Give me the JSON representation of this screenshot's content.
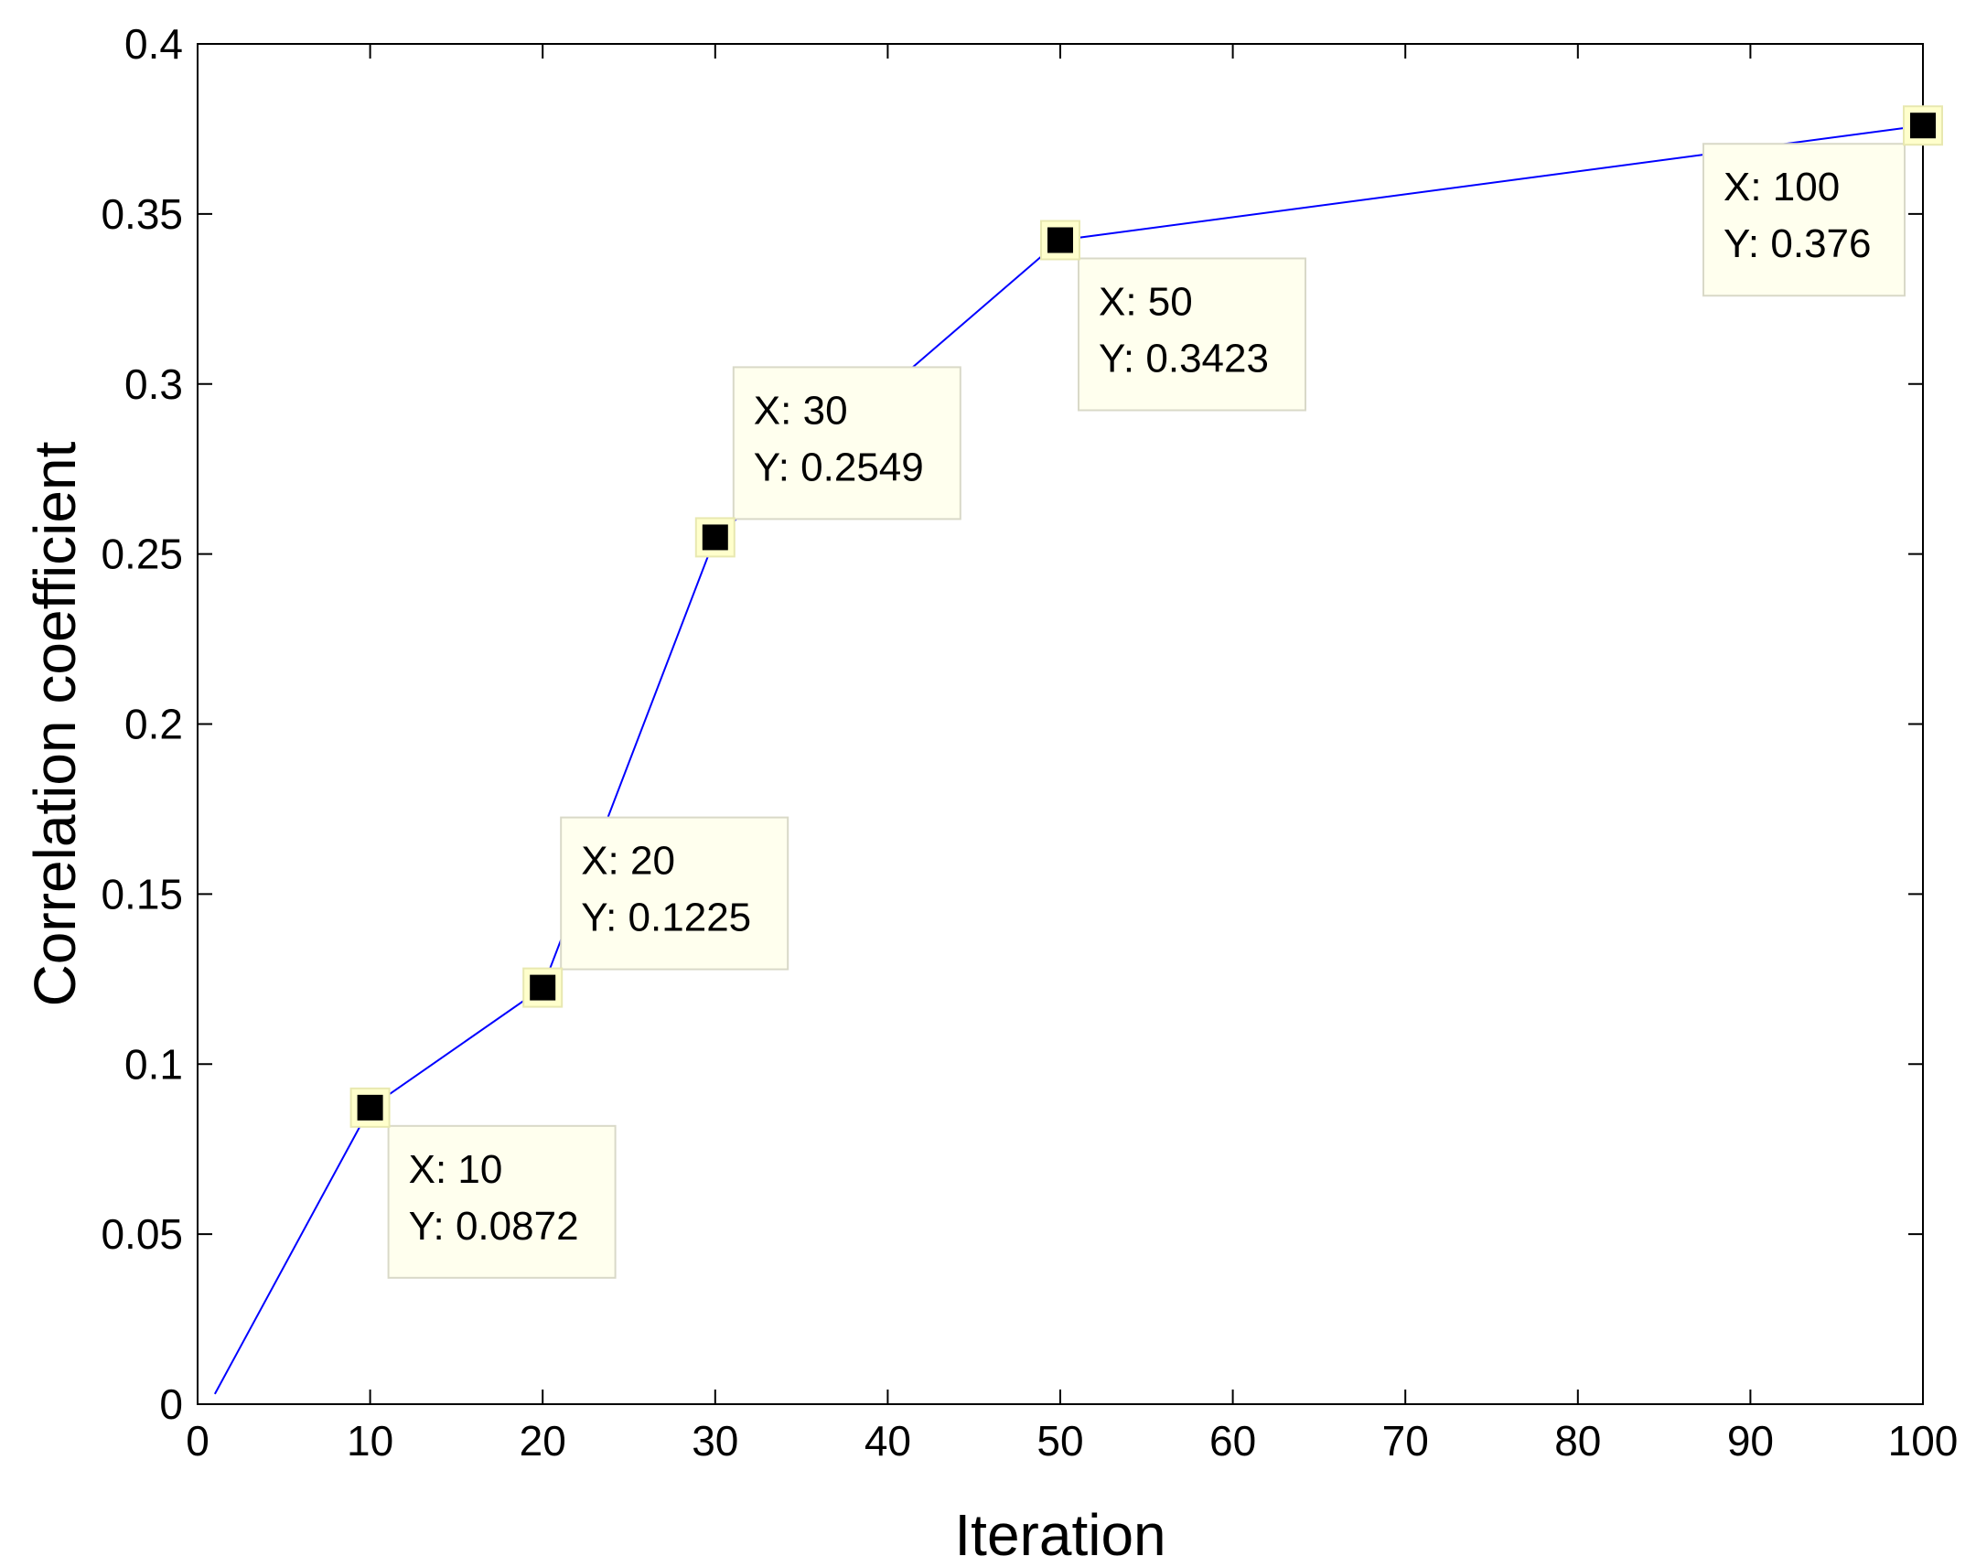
{
  "chart_data": {
    "type": "line",
    "title": "",
    "xlabel": "Iteration",
    "ylabel": "Correlation coefficient",
    "xlim": [
      0,
      100
    ],
    "ylim": [
      0,
      0.4
    ],
    "xticks": [
      0,
      10,
      20,
      30,
      40,
      50,
      60,
      70,
      80,
      90,
      100
    ],
    "yticks": [
      0,
      0.05,
      0.1,
      0.15,
      0.2,
      0.25,
      0.3,
      0.35,
      0.4
    ],
    "xtick_labels": [
      "0",
      "10",
      "20",
      "30",
      "40",
      "50",
      "60",
      "70",
      "80",
      "90",
      "100"
    ],
    "ytick_labels": [
      "0",
      "0.05",
      "0.1",
      "0.15",
      "0.2",
      "0.25",
      "0.3",
      "0.35",
      "0.4"
    ],
    "grid": false,
    "series": [
      {
        "name": "correlation",
        "color": "#0000ff",
        "x": [
          1,
          10,
          20,
          30,
          50,
          100
        ],
        "y": [
          0.003,
          0.0872,
          0.1225,
          0.2549,
          0.3423,
          0.376
        ]
      }
    ],
    "datatips": [
      {
        "x": 10,
        "y": 0.0872,
        "x_text": "X: 10",
        "y_text": "Y: 0.0872",
        "placement": "bottom-right"
      },
      {
        "x": 20,
        "y": 0.1225,
        "x_text": "X: 20",
        "y_text": "Y: 0.1225",
        "placement": "top-right"
      },
      {
        "x": 30,
        "y": 0.2549,
        "x_text": "X: 30",
        "y_text": "Y: 0.2549",
        "placement": "top-right"
      },
      {
        "x": 50,
        "y": 0.3423,
        "x_text": "X: 50",
        "y_text": "Y: 0.3423",
        "placement": "bottom-right"
      },
      {
        "x": 100,
        "y": 0.376,
        "x_text": "X: 100",
        "y_text": "Y: 0.376",
        "placement": "bottom-left"
      }
    ],
    "datatip_colors": {
      "fill": "#ffffee",
      "border": "#d9d9c8",
      "marker": "#000000",
      "marker_halo": "#ffffcc"
    }
  }
}
